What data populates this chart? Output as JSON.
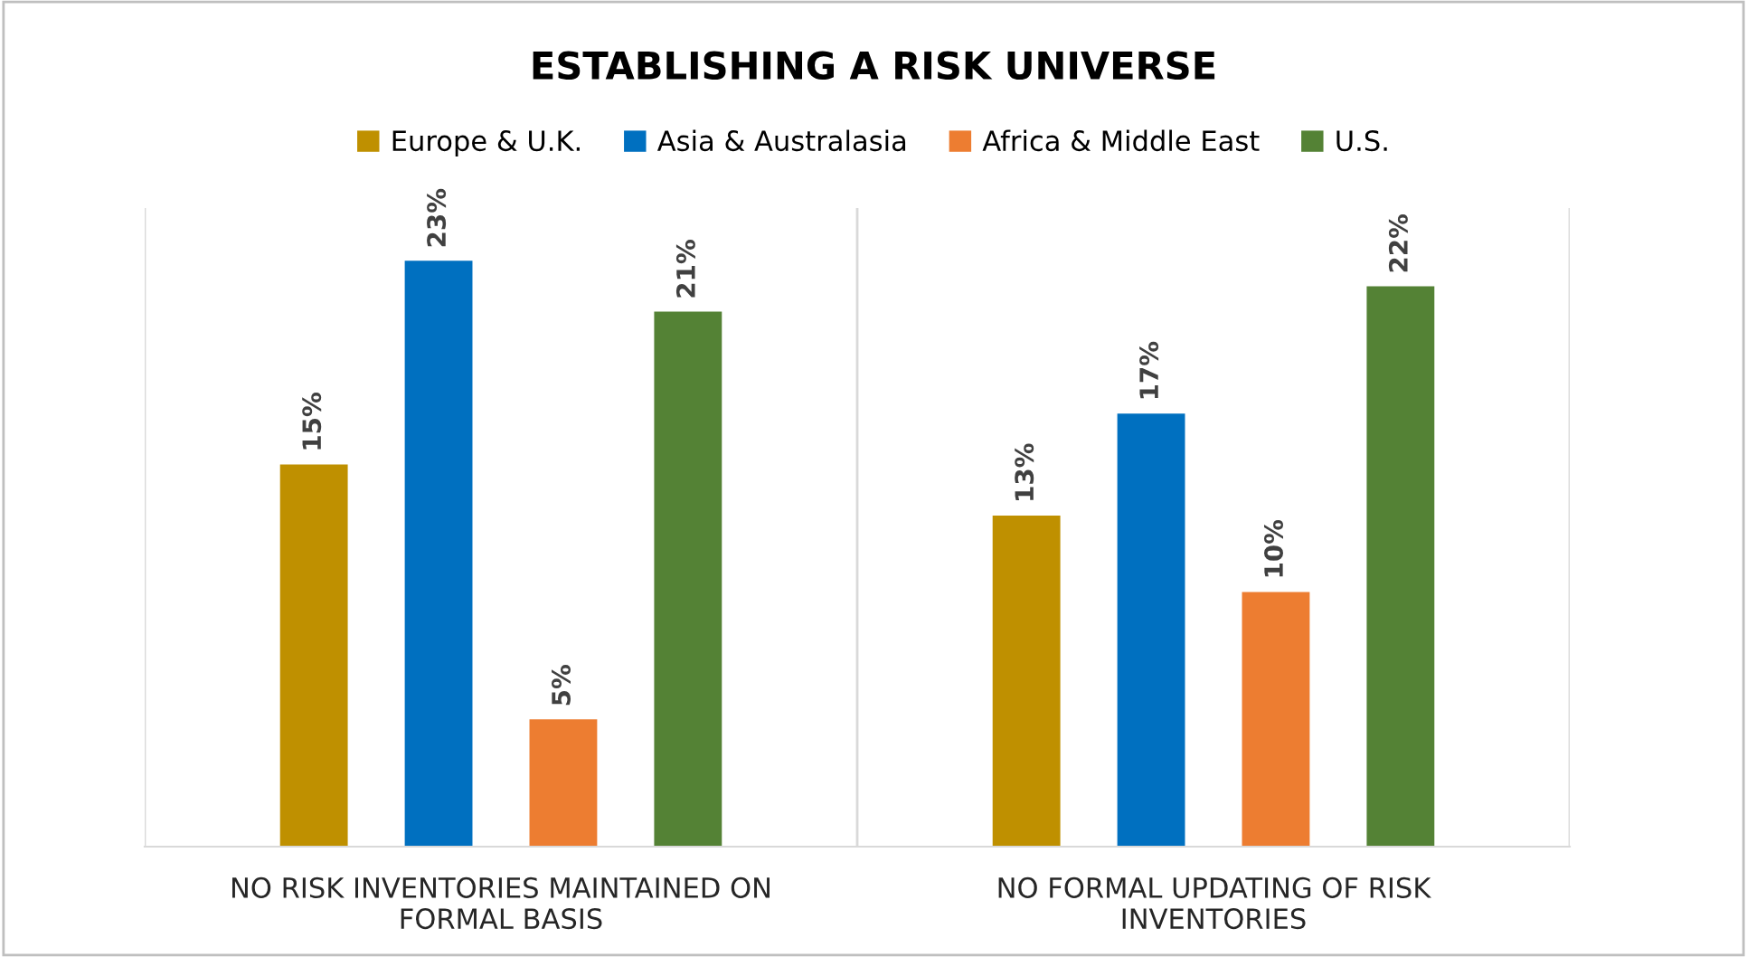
{
  "chart_data": {
    "type": "bar",
    "title": "ESTABLISHING A RISK UNIVERSE",
    "categories": [
      "NO RISK INVENTORIES MAINTAINED ON\nFORMAL BASIS",
      "NO FORMAL UPDATING OF RISK\nINVENTORIES"
    ],
    "series": [
      {
        "name": "Europe & U.K.",
        "color": "#bf9000",
        "values": [
          15,
          13
        ],
        "value_labels": [
          "15%",
          "13%"
        ]
      },
      {
        "name": "Asia & Australasia",
        "color": "#0070c0",
        "values": [
          23,
          17
        ],
        "value_labels": [
          "23%",
          "17%"
        ]
      },
      {
        "name": "Africa & Middle East",
        "color": "#ed7d31",
        "values": [
          5,
          10
        ],
        "value_labels": [
          "5%",
          "10%"
        ]
      },
      {
        "name": "U.S.",
        "color": "#548235",
        "values": [
          21,
          22
        ],
        "value_labels": [
          "21%",
          "22%"
        ]
      }
    ],
    "legend": "top",
    "grid": "x",
    "tick_labels": "x"
  }
}
